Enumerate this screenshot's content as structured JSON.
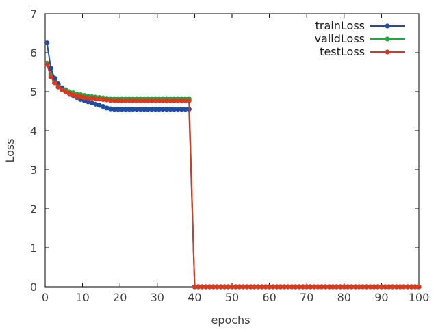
{
  "chart_data": {
    "type": "line",
    "xlabel": "epochs",
    "ylabel": "Loss",
    "xlim": [
      0,
      100
    ],
    "ylim": [
      0,
      7
    ],
    "xticks": [
      0,
      10,
      20,
      30,
      40,
      50,
      60,
      70,
      80,
      90,
      100
    ],
    "yticks": [
      0,
      1,
      2,
      3,
      4,
      5,
      6,
      7
    ],
    "grid": false,
    "legend_position": "top-right",
    "series": [
      {
        "name": "trainLoss",
        "color": "#1f4ea1",
        "x": [
          0.5,
          1.5,
          2.5,
          3.5,
          4.5,
          5.5,
          6.5,
          7.5,
          8.5,
          9.5,
          10.5,
          11.5,
          12.5,
          13.5,
          14.5,
          15.5,
          16.5,
          17.5,
          18.5,
          19.5,
          20.5,
          21.5,
          22.5,
          23.5,
          24.5,
          25.5,
          26.5,
          27.5,
          28.5,
          29.5,
          30.5,
          31.5,
          32.5,
          33.5,
          34.5,
          35.5,
          36.5,
          37.5,
          38.5,
          40.0,
          41.0,
          42.0,
          43.0,
          44.0,
          45.0,
          46.0,
          47.0,
          48.0,
          49.0,
          50.0,
          51.0,
          52.0,
          53.0,
          54.0,
          55.0,
          56.0,
          57.0,
          58.0,
          59.0,
          60.0,
          61.0,
          62.0,
          63.0,
          64.0,
          65.0,
          66.0,
          67.0,
          68.0,
          69.0,
          70.0,
          71.0,
          72.0,
          73.0,
          74.0,
          75.0,
          76.0,
          77.0,
          78.0,
          79.0,
          80.0,
          81.0,
          82.0,
          83.0,
          84.0,
          85.0,
          86.0,
          87.0,
          88.0,
          89.0,
          90.0,
          91.0,
          92.0,
          93.0,
          94.0,
          95.0,
          96.0,
          97.0,
          98.0,
          99.0,
          100.0
        ],
        "y": [
          6.25,
          5.6,
          5.35,
          5.2,
          5.1,
          5.0,
          4.95,
          4.9,
          4.85,
          4.8,
          4.77,
          4.74,
          4.71,
          4.68,
          4.65,
          4.62,
          4.58,
          4.56,
          4.55,
          4.55,
          4.55,
          4.55,
          4.55,
          4.55,
          4.55,
          4.55,
          4.55,
          4.55,
          4.55,
          4.55,
          4.55,
          4.55,
          4.55,
          4.55,
          4.55,
          4.55,
          4.55,
          4.55,
          4.55,
          0,
          0,
          0,
          0,
          0,
          0,
          0,
          0,
          0,
          0,
          0,
          0,
          0,
          0,
          0,
          0,
          0,
          0,
          0,
          0,
          0,
          0,
          0,
          0,
          0,
          0,
          0,
          0,
          0,
          0,
          0,
          0,
          0,
          0,
          0,
          0,
          0,
          0,
          0,
          0,
          0,
          0,
          0,
          0,
          0,
          0,
          0,
          0,
          0,
          0,
          0,
          0,
          0,
          0,
          0,
          0,
          0,
          0,
          0,
          0,
          0
        ]
      },
      {
        "name": "validLoss",
        "color": "#1fa83c",
        "x": [
          0.5,
          1.5,
          2.5,
          3.5,
          4.5,
          5.5,
          6.5,
          7.5,
          8.5,
          9.5,
          10.5,
          11.5,
          12.5,
          13.5,
          14.5,
          15.5,
          16.5,
          17.5,
          18.5,
          19.5,
          20.5,
          21.5,
          22.5,
          23.5,
          24.5,
          25.5,
          26.5,
          27.5,
          28.5,
          29.5,
          30.5,
          31.5,
          32.5,
          33.5,
          34.5,
          35.5,
          36.5,
          37.5,
          38.5,
          40.0,
          41.0,
          42.0,
          43.0,
          44.0,
          45.0,
          46.0,
          47.0,
          48.0,
          49.0,
          50.0,
          51.0,
          52.0,
          53.0,
          54.0,
          55.0,
          56.0,
          57.0,
          58.0,
          59.0,
          60.0,
          61.0,
          62.0,
          63.0,
          64.0,
          65.0,
          66.0,
          67.0,
          68.0,
          69.0,
          70.0,
          71.0,
          72.0,
          73.0,
          74.0,
          75.0,
          76.0,
          77.0,
          78.0,
          79.0,
          80.0,
          81.0,
          82.0,
          83.0,
          84.0,
          85.0,
          86.0,
          87.0,
          88.0,
          89.0,
          90.0,
          91.0,
          92.0,
          93.0,
          94.0,
          95.0,
          96.0,
          97.0,
          98.0,
          99.0,
          100.0
        ],
        "y": [
          5.73,
          5.45,
          5.3,
          5.18,
          5.1,
          5.05,
          5.0,
          4.97,
          4.94,
          4.92,
          4.9,
          4.88,
          4.87,
          4.86,
          4.85,
          4.84,
          4.83,
          4.82,
          4.82,
          4.82,
          4.82,
          4.82,
          4.82,
          4.82,
          4.82,
          4.82,
          4.82,
          4.82,
          4.82,
          4.82,
          4.82,
          4.82,
          4.82,
          4.82,
          4.82,
          4.82,
          4.82,
          4.82,
          4.82,
          0,
          0,
          0,
          0,
          0,
          0,
          0,
          0,
          0,
          0,
          0,
          0,
          0,
          0,
          0,
          0,
          0,
          0,
          0,
          0,
          0,
          0,
          0,
          0,
          0,
          0,
          0,
          0,
          0,
          0,
          0,
          0,
          0,
          0,
          0,
          0,
          0,
          0,
          0,
          0,
          0,
          0,
          0,
          0,
          0,
          0,
          0,
          0,
          0,
          0,
          0,
          0,
          0,
          0,
          0,
          0,
          0,
          0,
          0,
          0,
          0
        ]
      },
      {
        "name": "testLoss",
        "color": "#d93a1f",
        "x": [
          0.5,
          1.5,
          2.5,
          3.5,
          4.5,
          5.5,
          6.5,
          7.5,
          8.5,
          9.5,
          10.5,
          11.5,
          12.5,
          13.5,
          14.5,
          15.5,
          16.5,
          17.5,
          18.5,
          19.5,
          20.5,
          21.5,
          22.5,
          23.5,
          24.5,
          25.5,
          26.5,
          27.5,
          28.5,
          29.5,
          30.5,
          31.5,
          32.5,
          33.5,
          34.5,
          35.5,
          36.5,
          37.5,
          38.5,
          40.0,
          41.0,
          42.0,
          43.0,
          44.0,
          45.0,
          46.0,
          47.0,
          48.0,
          49.0,
          50.0,
          51.0,
          52.0,
          53.0,
          54.0,
          55.0,
          56.0,
          57.0,
          58.0,
          59.0,
          60.0,
          61.0,
          62.0,
          63.0,
          64.0,
          65.0,
          66.0,
          67.0,
          68.0,
          69.0,
          70.0,
          71.0,
          72.0,
          73.0,
          74.0,
          75.0,
          76.0,
          77.0,
          78.0,
          79.0,
          80.0,
          81.0,
          82.0,
          83.0,
          84.0,
          85.0,
          86.0,
          87.0,
          88.0,
          89.0,
          90.0,
          91.0,
          92.0,
          93.0,
          94.0,
          95.0,
          96.0,
          97.0,
          98.0,
          99.0,
          100.0
        ],
        "y": [
          5.7,
          5.38,
          5.23,
          5.12,
          5.05,
          5.0,
          4.95,
          4.92,
          4.89,
          4.87,
          4.85,
          4.84,
          4.83,
          4.82,
          4.81,
          4.8,
          4.79,
          4.78,
          4.77,
          4.77,
          4.77,
          4.77,
          4.77,
          4.77,
          4.77,
          4.77,
          4.77,
          4.77,
          4.77,
          4.77,
          4.77,
          4.77,
          4.77,
          4.77,
          4.77,
          4.77,
          4.77,
          4.77,
          4.77,
          0,
          0,
          0,
          0,
          0,
          0,
          0,
          0,
          0,
          0,
          0,
          0,
          0,
          0,
          0,
          0,
          0,
          0,
          0,
          0,
          0,
          0,
          0,
          0,
          0,
          0,
          0,
          0,
          0,
          0,
          0,
          0,
          0,
          0,
          0,
          0,
          0,
          0,
          0,
          0,
          0,
          0,
          0,
          0,
          0,
          0,
          0,
          0,
          0,
          0,
          0,
          0,
          0,
          0,
          0,
          0,
          0,
          0,
          0,
          0,
          0
        ]
      }
    ]
  }
}
